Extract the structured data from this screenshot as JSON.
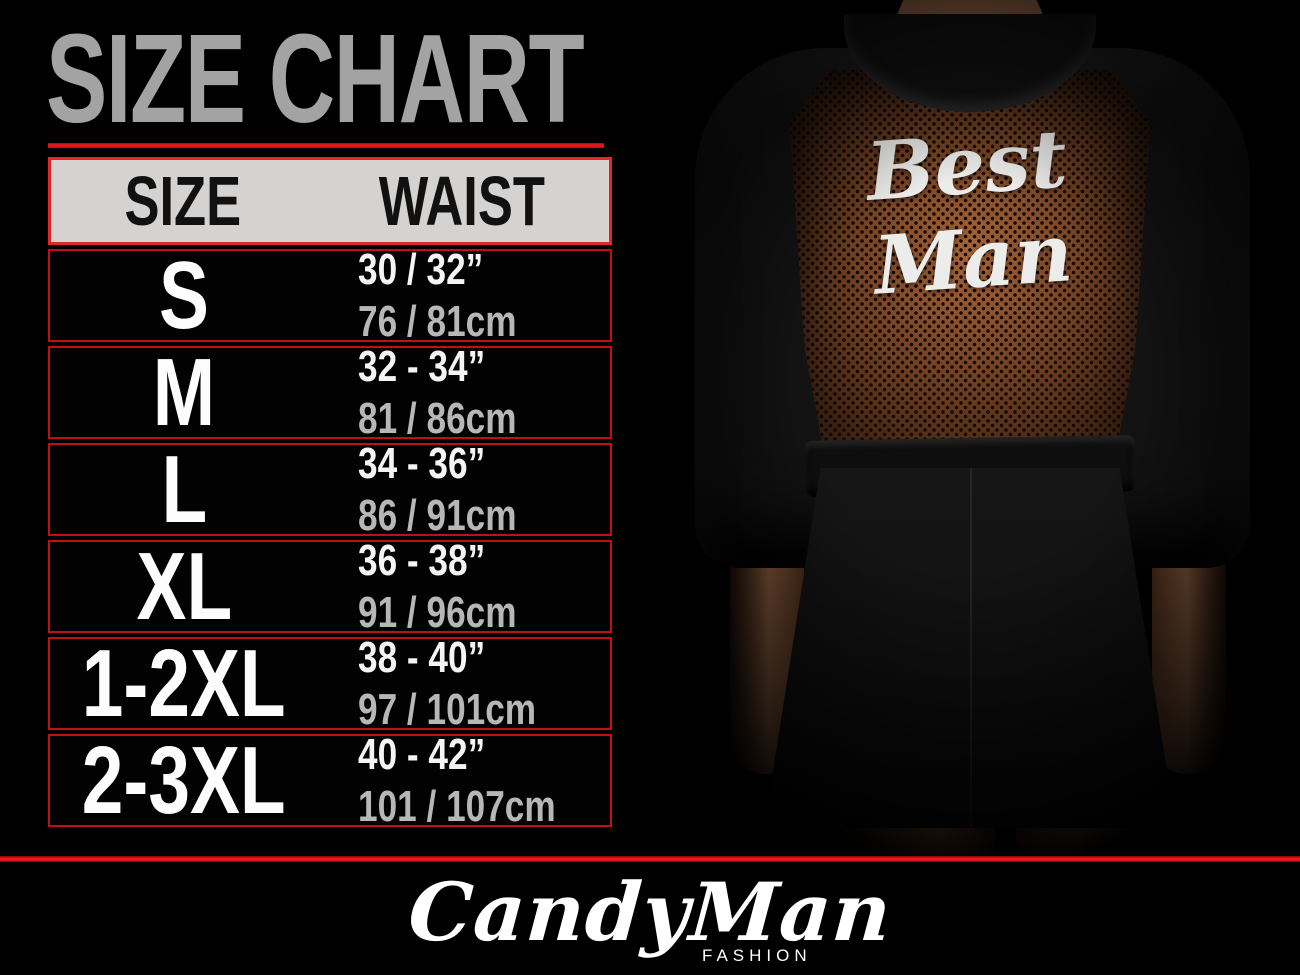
{
  "title": "SIZE CHART",
  "table": {
    "headers": [
      "SIZE",
      "WAIST"
    ],
    "rows": [
      {
        "size": "S",
        "waist_in": "30 / 32”",
        "waist_cm": "76 / 81cm"
      },
      {
        "size": "M",
        "waist_in": "32 - 34”",
        "waist_cm": "81 / 86cm"
      },
      {
        "size": "L",
        "waist_in": "34 - 36”",
        "waist_cm": "86 / 91cm"
      },
      {
        "size": "XL",
        "waist_in": "36 - 38”",
        "waist_cm": "91 / 96cm"
      },
      {
        "size": "1-2XL",
        "waist_in": "38 - 40”",
        "waist_cm": "97 / 101cm"
      },
      {
        "size": "2-3XL",
        "waist_in": "40 - 42”",
        "waist_cm": "101 / 107cm"
      }
    ]
  },
  "photo": {
    "garment_text": "Best Man"
  },
  "brand": {
    "name": "CandyMan",
    "tagline": "FASHION"
  },
  "colors": {
    "background": "#000000",
    "accent_red": "#e0151a",
    "title_gray": "#a3a3a3",
    "header_bg": "#d5d3d1",
    "text_white": "#f4f4f4",
    "text_dim": "#b7b7b7",
    "mesh_brown": "#7a4a2c"
  },
  "chart_data": {
    "type": "table",
    "title": "SIZE CHART",
    "columns": [
      "SIZE",
      "WAIST"
    ],
    "rows": [
      {
        "size": "S",
        "waist_inches": "30 / 32”",
        "waist_cm": "76 / 81cm"
      },
      {
        "size": "M",
        "waist_inches": "32 - 34”",
        "waist_cm": "81 / 86cm"
      },
      {
        "size": "L",
        "waist_inches": "34 - 36”",
        "waist_cm": "86 / 91cm"
      },
      {
        "size": "XL",
        "waist_inches": "36 - 38”",
        "waist_cm": "91 / 96cm"
      },
      {
        "size": "1-2XL",
        "waist_inches": "38 - 40”",
        "waist_cm": "97 / 101cm"
      },
      {
        "size": "2-3XL",
        "waist_inches": "40 - 42”",
        "waist_cm": "101 / 107cm"
      }
    ]
  }
}
